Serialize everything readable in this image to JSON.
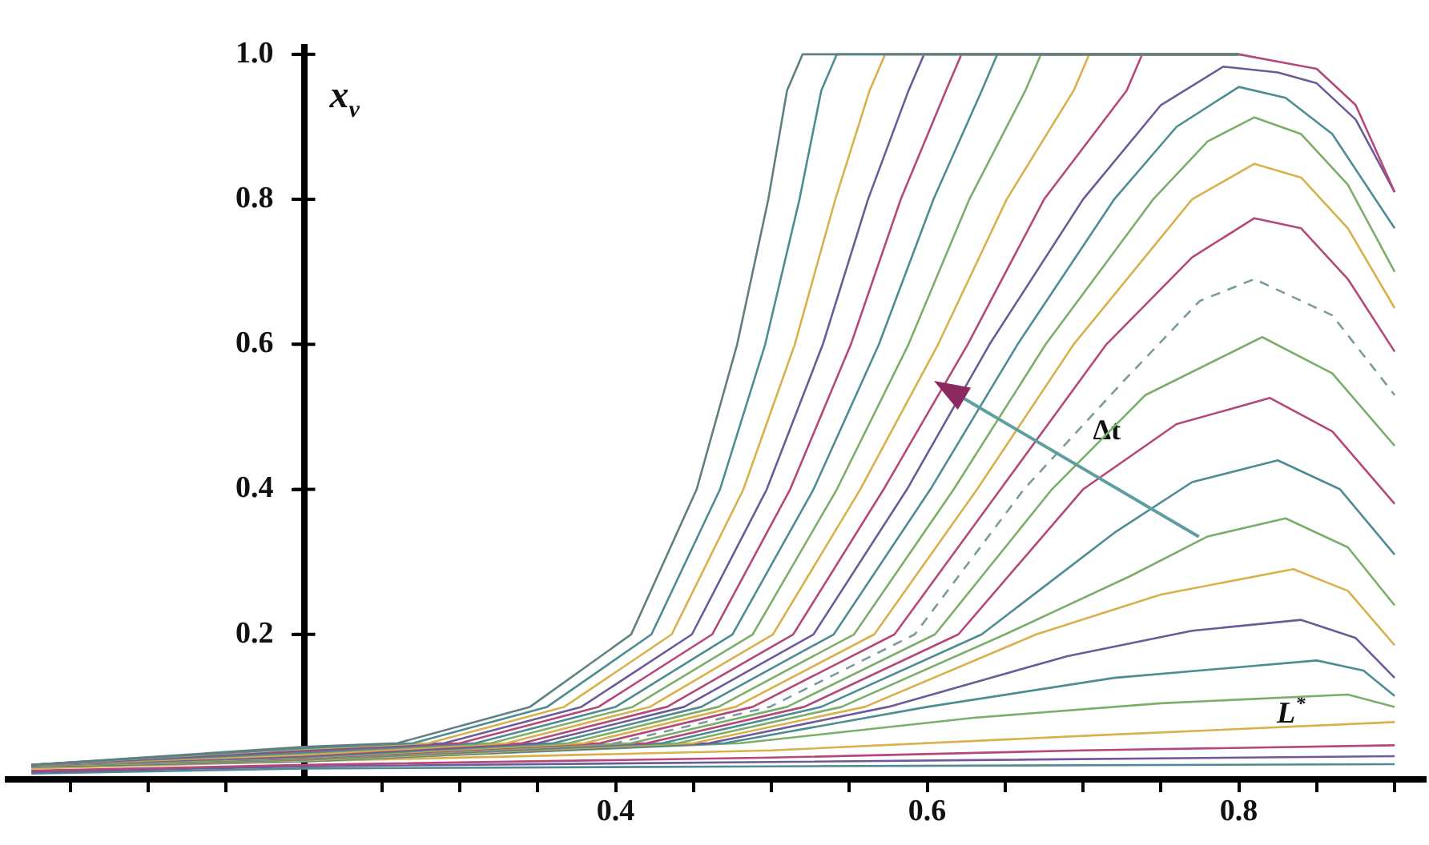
{
  "chart_data": {
    "type": "line",
    "ylabel": "x$_{ν}$",
    "grid": false,
    "legend": false,
    "marker": "none",
    "line_style": "solid",
    "xlim": [
      0.01,
      0.92
    ],
    "ylim": [
      0,
      1.01
    ],
    "xticks": [
      {
        "value": 0.05,
        "label": null
      },
      {
        "value": 0.1,
        "label": null
      },
      {
        "value": 0.15,
        "label": null
      },
      {
        "value": 0.25,
        "label": null
      },
      {
        "value": 0.3,
        "label": null
      },
      {
        "value": 0.35,
        "label": null
      },
      0.4,
      {
        "value": 0.45,
        "label": null
      },
      {
        "value": 0.5,
        "label": null
      },
      {
        "value": 0.55,
        "label": null
      },
      0.6,
      {
        "value": 0.65,
        "label": null
      },
      {
        "value": 0.7,
        "label": null
      },
      {
        "value": 0.75,
        "label": null
      },
      0.8,
      {
        "value": 0.85,
        "label": null
      },
      {
        "value": 0.9,
        "label": null
      }
    ],
    "yticks": [
      0.2,
      0.4,
      0.6,
      0.8,
      {
        "value": 1,
        "label": "1.0"
      }
    ],
    "annotations": [
      "Δt",
      "L$^{*}$"
    ],
    "series": [
      {
        "color": "#5f7f80",
        "x": [
          0.025,
          0.2,
          0.26,
          0.345,
          0.41,
          0.452,
          0.478,
          0.498,
          0.51,
          0.52,
          0.8
        ],
        "values": [
          0.02,
          0.045,
          0.05,
          0.1,
          0.2,
          0.4,
          0.6,
          0.8,
          0.95,
          1.0,
          1.0
        ]
      },
      {
        "color": "#4e8c93",
        "x": [
          0.025,
          0.2,
          0.27,
          0.356,
          0.423,
          0.467,
          0.496,
          0.518,
          0.532,
          0.542,
          0.8
        ],
        "values": [
          0.02,
          0.043,
          0.05,
          0.1,
          0.2,
          0.4,
          0.6,
          0.8,
          0.95,
          1.0,
          1.0
        ]
      },
      {
        "color": "#d8b04c",
        "x": [
          0.025,
          0.2,
          0.28,
          0.367,
          0.436,
          0.482,
          0.515,
          0.541,
          0.563,
          0.573,
          0.8
        ],
        "values": [
          0.02,
          0.042,
          0.05,
          0.1,
          0.2,
          0.4,
          0.6,
          0.8,
          0.95,
          1.0,
          1.0
        ]
      },
      {
        "color": "#6e5a98",
        "x": [
          0.025,
          0.2,
          0.29,
          0.378,
          0.449,
          0.497,
          0.533,
          0.562,
          0.588,
          0.598,
          0.8
        ],
        "values": [
          0.02,
          0.04,
          0.05,
          0.1,
          0.2,
          0.4,
          0.6,
          0.8,
          0.95,
          1.0,
          1.0
        ]
      },
      {
        "color": "#b4487a",
        "x": [
          0.025,
          0.2,
          0.3,
          0.389,
          0.462,
          0.512,
          0.551,
          0.583,
          0.612,
          0.622,
          0.8
        ],
        "values": [
          0.02,
          0.039,
          0.05,
          0.1,
          0.2,
          0.4,
          0.6,
          0.8,
          0.95,
          1.0,
          1.0
        ]
      },
      {
        "color": "#4e8c93",
        "x": [
          0.025,
          0.2,
          0.31,
          0.4,
          0.475,
          0.527,
          0.569,
          0.604,
          0.635,
          0.645,
          0.8
        ],
        "values": [
          0.02,
          0.037,
          0.05,
          0.1,
          0.2,
          0.4,
          0.6,
          0.8,
          0.95,
          1.0,
          1.0
        ]
      },
      {
        "color": "#7cae6a",
        "x": [
          0.025,
          0.2,
          0.32,
          0.411,
          0.488,
          0.542,
          0.588,
          0.627,
          0.663,
          0.673,
          0.8
        ],
        "values": [
          0.02,
          0.036,
          0.05,
          0.1,
          0.2,
          0.4,
          0.6,
          0.8,
          0.95,
          1.0,
          1.0
        ]
      },
      {
        "color": "#d8b04c",
        "x": [
          0.025,
          0.2,
          0.33,
          0.422,
          0.501,
          0.557,
          0.607,
          0.651,
          0.694,
          0.704,
          0.8
        ],
        "values": [
          0.02,
          0.034,
          0.05,
          0.1,
          0.2,
          0.4,
          0.6,
          0.8,
          0.95,
          1.0,
          1.0
        ]
      },
      {
        "color": "#b4487a",
        "x": [
          0.025,
          0.2,
          0.34,
          0.433,
          0.514,
          0.572,
          0.626,
          0.675,
          0.728,
          0.738,
          0.8,
          0.825,
          0.85,
          0.875,
          0.9
        ],
        "values": [
          0.02,
          0.033,
          0.05,
          0.1,
          0.2,
          0.4,
          0.6,
          0.8,
          0.95,
          1.0,
          1.0,
          0.99,
          0.98,
          0.93,
          0.81
        ]
      },
      {
        "color": "#6e5a98",
        "x": [
          0.025,
          0.2,
          0.35,
          0.444,
          0.527,
          0.587,
          0.64,
          0.7,
          0.75,
          0.79,
          0.825,
          0.85,
          0.875,
          0.9
        ],
        "values": [
          0.02,
          0.032,
          0.05,
          0.1,
          0.2,
          0.4,
          0.6,
          0.8,
          0.93,
          0.983,
          0.975,
          0.96,
          0.91,
          0.81
        ]
      },
      {
        "color": "#4e8c93",
        "x": [
          0.025,
          0.2,
          0.36,
          0.455,
          0.54,
          0.602,
          0.658,
          0.72,
          0.76,
          0.8,
          0.83,
          0.86,
          0.9
        ],
        "values": [
          0.02,
          0.031,
          0.05,
          0.1,
          0.2,
          0.4,
          0.6,
          0.8,
          0.9,
          0.955,
          0.94,
          0.89,
          0.76
        ]
      },
      {
        "color": "#7cae6a",
        "x": [
          0.025,
          0.2,
          0.37,
          0.466,
          0.553,
          0.617,
          0.676,
          0.745,
          0.78,
          0.81,
          0.84,
          0.87,
          0.9
        ],
        "values": [
          0.02,
          0.03,
          0.05,
          0.1,
          0.2,
          0.4,
          0.6,
          0.8,
          0.88,
          0.913,
          0.89,
          0.82,
          0.7
        ]
      },
      {
        "color": "#d8b04c",
        "x": [
          0.025,
          0.2,
          0.38,
          0.477,
          0.566,
          0.632,
          0.694,
          0.77,
          0.81,
          0.84,
          0.87,
          0.9
        ],
        "values": [
          0.02,
          0.03,
          0.05,
          0.1,
          0.2,
          0.4,
          0.6,
          0.8,
          0.849,
          0.83,
          0.76,
          0.65
        ]
      },
      {
        "color": "#b4487a",
        "x": [
          0.025,
          0.2,
          0.39,
          0.488,
          0.579,
          0.647,
          0.715,
          0.77,
          0.81,
          0.84,
          0.87,
          0.9
        ],
        "values": [
          0.02,
          0.029,
          0.05,
          0.1,
          0.2,
          0.4,
          0.6,
          0.72,
          0.774,
          0.76,
          0.69,
          0.59
        ]
      },
      {
        "color": "#7a9aa0",
        "line_style": "dashed",
        "x": [
          0.025,
          0.2,
          0.4,
          0.499,
          0.592,
          0.662,
          0.725,
          0.775,
          0.81,
          0.86,
          0.9
        ],
        "values": [
          0.02,
          0.029,
          0.05,
          0.1,
          0.2,
          0.4,
          0.547,
          0.66,
          0.69,
          0.64,
          0.53
        ]
      },
      {
        "color": "#7cae6a",
        "x": [
          0.025,
          0.2,
          0.41,
          0.51,
          0.605,
          0.68,
          0.74,
          0.815,
          0.86,
          0.9
        ],
        "values": [
          0.02,
          0.028,
          0.05,
          0.1,
          0.2,
          0.4,
          0.53,
          0.61,
          0.56,
          0.46
        ]
      },
      {
        "color": "#b4487a",
        "x": [
          0.025,
          0.2,
          0.42,
          0.521,
          0.62,
          0.7,
          0.76,
          0.82,
          0.86,
          0.9
        ],
        "values": [
          0.02,
          0.028,
          0.05,
          0.1,
          0.2,
          0.4,
          0.49,
          0.526,
          0.48,
          0.38
        ]
      },
      {
        "color": "#4e8c93",
        "x": [
          0.025,
          0.2,
          0.43,
          0.532,
          0.635,
          0.72,
          0.77,
          0.825,
          0.865,
          0.9
        ],
        "values": [
          0.02,
          0.027,
          0.05,
          0.1,
          0.2,
          0.34,
          0.41,
          0.44,
          0.4,
          0.31
        ]
      },
      {
        "color": "#7cae6a",
        "x": [
          0.025,
          0.2,
          0.44,
          0.545,
          0.65,
          0.73,
          0.78,
          0.83,
          0.87,
          0.9
        ],
        "values": [
          0.019,
          0.027,
          0.05,
          0.1,
          0.2,
          0.28,
          0.335,
          0.36,
          0.32,
          0.24
        ]
      },
      {
        "color": "#d8b04c",
        "x": [
          0.025,
          0.2,
          0.45,
          0.56,
          0.67,
          0.75,
          0.835,
          0.87,
          0.9
        ],
        "values": [
          0.019,
          0.026,
          0.05,
          0.1,
          0.2,
          0.255,
          0.29,
          0.26,
          0.185
        ]
      },
      {
        "color": "#6e5a98",
        "x": [
          0.025,
          0.2,
          0.46,
          0.575,
          0.69,
          0.77,
          0.84,
          0.875,
          0.9
        ],
        "values": [
          0.018,
          0.026,
          0.05,
          0.1,
          0.17,
          0.205,
          0.22,
          0.195,
          0.14
        ]
      },
      {
        "color": "#4e8c93",
        "x": [
          0.025,
          0.2,
          0.47,
          0.6,
          0.72,
          0.85,
          0.88,
          0.9
        ],
        "values": [
          0.018,
          0.025,
          0.05,
          0.1,
          0.14,
          0.164,
          0.15,
          0.115
        ]
      },
      {
        "color": "#7cae6a",
        "x": [
          0.025,
          0.2,
          0.48,
          0.63,
          0.75,
          0.87,
          0.9
        ],
        "values": [
          0.017,
          0.025,
          0.05,
          0.085,
          0.105,
          0.117,
          0.1
        ]
      },
      {
        "color": "#d8b04c",
        "x": [
          0.025,
          0.2,
          0.5,
          0.7,
          0.9
        ],
        "values": [
          0.015,
          0.025,
          0.04,
          0.06,
          0.079
        ]
      },
      {
        "color": "#b4487a",
        "x": [
          0.025,
          0.2,
          0.5,
          0.7,
          0.9
        ],
        "values": [
          0.012,
          0.02,
          0.03,
          0.04,
          0.047
        ]
      },
      {
        "color": "#6e5a98",
        "x": [
          0.025,
          0.2,
          0.5,
          0.9
        ],
        "values": [
          0.01,
          0.018,
          0.024,
          0.032
        ]
      },
      {
        "color": "#4e8c93",
        "x": [
          0.025,
          0.2,
          0.5,
          0.9
        ],
        "values": [
          0.008,
          0.015,
          0.018,
          0.021
        ]
      }
    ]
  }
}
